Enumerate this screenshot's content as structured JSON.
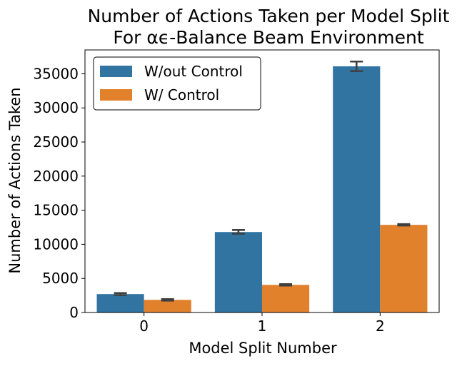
{
  "chart_data": {
    "type": "bar",
    "title": "Number of Actions Taken per Model Split",
    "subtitle": "For αϵ-Balance Beam Environment",
    "xlabel": "Model Split Number",
    "ylabel": "Number of Actions Taken",
    "categories": [
      "0",
      "1",
      "2"
    ],
    "series": [
      {
        "name": "W/out Control",
        "color": "#3274a1",
        "values": [
          2700,
          11800,
          36100
        ],
        "error": [
          [
            2550,
            2850
          ],
          [
            11550,
            12100
          ],
          [
            35400,
            36800
          ]
        ]
      },
      {
        "name": "W/ Control",
        "color": "#e1812c",
        "values": [
          1850,
          4050,
          12850
        ],
        "error": [
          [
            1750,
            1950
          ],
          [
            3950,
            4150
          ],
          [
            12750,
            12950
          ]
        ]
      }
    ],
    "ylim": [
      0,
      38500
    ],
    "yticks": [
      0,
      5000,
      10000,
      15000,
      20000,
      25000,
      30000,
      35000
    ],
    "ytick_labels": [
      "0",
      "5000",
      "10000",
      "15000",
      "20000",
      "25000",
      "30000",
      "35000"
    ],
    "grid": false,
    "legend_position": "top-left",
    "errorbar_color": "#3f3f3f"
  }
}
